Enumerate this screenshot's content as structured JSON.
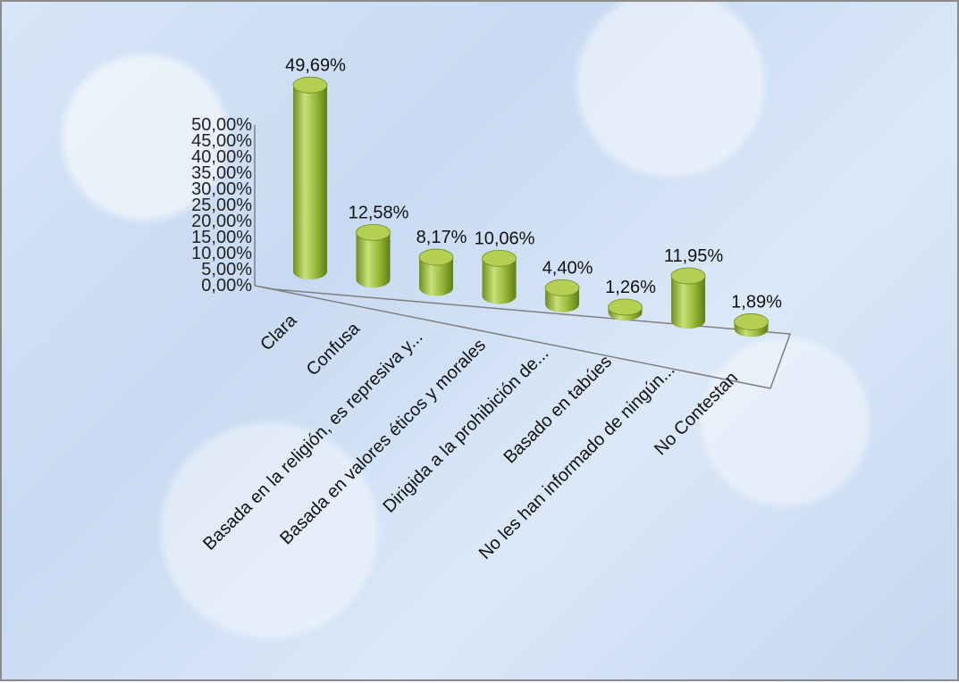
{
  "chart_data": {
    "type": "bar",
    "style": "3d-cylinder",
    "categories": [
      "Clara",
      "Confusa",
      "Basada en la religión, es represiva y...",
      "Basada en valores éticos y morales",
      "Dirigida a la prohibición de...",
      "Basado en tabúes",
      "No les han informado de ningún...",
      "No Contestan"
    ],
    "values": [
      49.69,
      12.58,
      8.17,
      10.06,
      4.4,
      1.26,
      11.95,
      1.89
    ],
    "value_labels": [
      "49,69%",
      "12,58%",
      "8,17%",
      "10,06%",
      "4,40%",
      "1,26%",
      "11,95%",
      "1,89%"
    ],
    "y_ticks": [
      "0,00%",
      "5,00%",
      "10,00%",
      "15,00%",
      "20,00%",
      "25,00%",
      "30,00%",
      "35,00%",
      "40,00%",
      "45,00%",
      "50,00%"
    ],
    "ylim": [
      0,
      50
    ],
    "grid": false,
    "legend": "none",
    "colors": {
      "bar": "#9bbb3b",
      "bar_dark": "#6f8f1f",
      "bar_light": "#c9e07a",
      "top": "#b5cf55",
      "axis": "#7f7f7f"
    }
  }
}
